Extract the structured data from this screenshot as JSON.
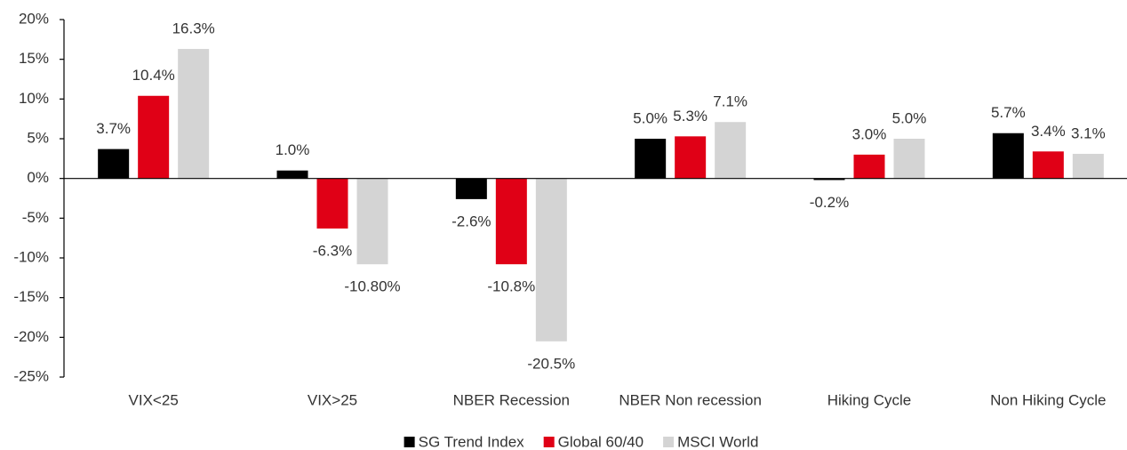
{
  "chart_data": {
    "type": "bar",
    "categories": [
      "VIX<25",
      "VIX>25",
      "NBER Recession",
      "NBER Non recession",
      "Hiking Cycle",
      "Non Hiking Cycle"
    ],
    "series": [
      {
        "name": "SG Trend Index",
        "color": "#000000",
        "values": [
          3.7,
          1.0,
          -2.6,
          5.0,
          -0.2,
          5.7
        ],
        "value_labels": [
          "3.7%",
          "1.0%",
          "-2.6%",
          "5.0%",
          "-0.2%",
          "5.7%"
        ]
      },
      {
        "name": "Global 60/40",
        "color": "#e00016",
        "values": [
          10.4,
          -6.3,
          -10.8,
          5.3,
          3.0,
          3.4
        ],
        "value_labels": [
          "10.4%",
          "-6.3%",
          "-10.8%",
          "5.3%",
          "3.0%",
          "3.4%"
        ]
      },
      {
        "name": "MSCI World",
        "color": "#d4d4d4",
        "values": [
          16.3,
          -10.8,
          -20.5,
          7.1,
          5.0,
          3.1
        ],
        "value_labels": [
          "16.3%",
          "-10.80%",
          "-20.5%",
          "7.1%",
          "5.0%",
          "3.1%"
        ]
      }
    ],
    "ylim": [
      -25,
      20
    ],
    "yticks": [
      {
        "value": -25,
        "label": "-25%"
      },
      {
        "value": -20,
        "label": "-20%"
      },
      {
        "value": -15,
        "label": "-15%"
      },
      {
        "value": -10,
        "label": "-10%"
      },
      {
        "value": -5,
        "label": "-5%"
      },
      {
        "value": 0,
        "label": "0%"
      },
      {
        "value": 5,
        "label": "5%"
      },
      {
        "value": 10,
        "label": "10%"
      },
      {
        "value": 15,
        "label": "15%"
      },
      {
        "value": 20,
        "label": "20%"
      }
    ],
    "grid": false,
    "legend": "bottom"
  }
}
